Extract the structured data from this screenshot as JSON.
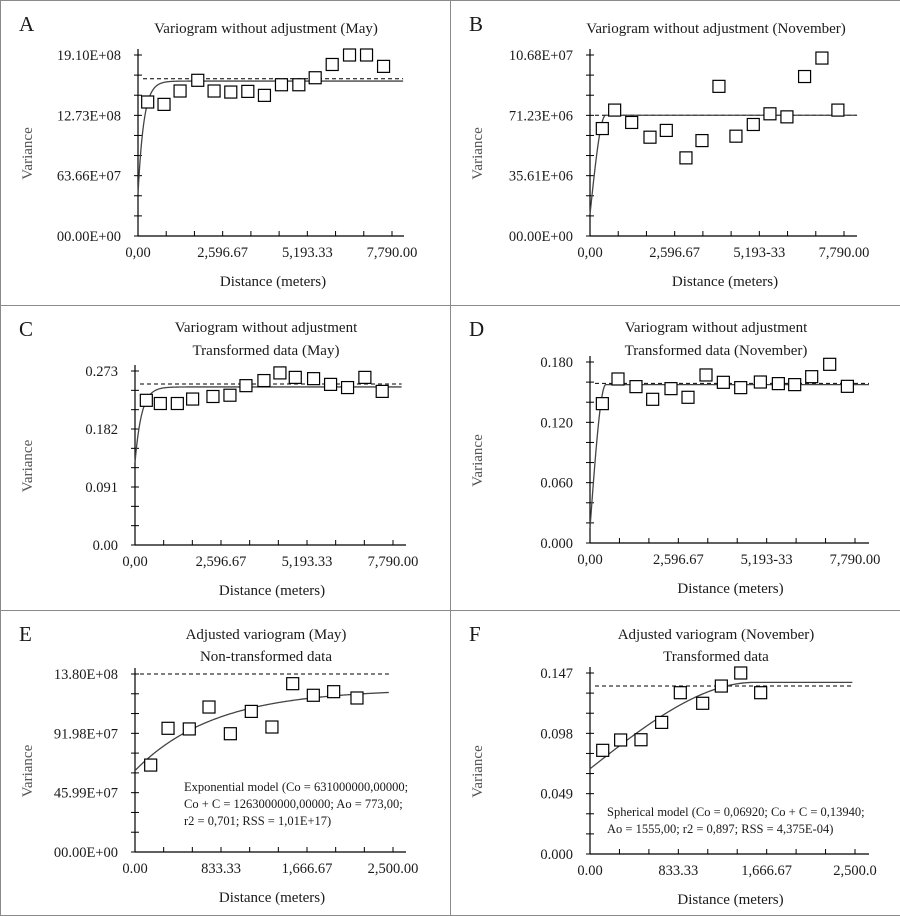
{
  "chart_data": [
    {
      "type": "scatter",
      "panel_label": "A",
      "title": [
        "Variogram without adjustment (May)"
      ],
      "xlabel": "Distance (meters)",
      "ylabel": "Variance",
      "xlim": [
        0,
        7790
      ],
      "ylim": [
        0,
        1910000000
      ],
      "x_tick_labels": [
        "0,00",
        "2,596.67",
        "5,193.33",
        "7,790.00"
      ],
      "y_tick_labels": [
        "00.00E+00",
        "63.66E+07",
        "12.73E+08",
        "19.10E+08"
      ],
      "x": [
        297,
        798,
        1290,
        1833,
        2333,
        2846,
        3368,
        3878,
        4400,
        4933,
        5434,
        5956,
        6487,
        7009,
        7531
      ],
      "y": [
        1414000000,
        1389000000,
        1530000000,
        1643000000,
        1530000000,
        1519000000,
        1526000000,
        1484000000,
        1596000000,
        1596000000,
        1670000000,
        1810000000,
        1910000000,
        1910000000,
        1790000000
      ],
      "sill_line": 1660000000,
      "model": {
        "type": "exponential",
        "nugget": 440000000,
        "sill": 1635000000,
        "range": 179,
        "x_max": 8130
      },
      "annotation": []
    },
    {
      "type": "scatter",
      "panel_label": "B",
      "title": [
        "Variogram without adjustment (November)"
      ],
      "xlabel": "Distance (meters)",
      "ylabel": "Variance",
      "xlim": [
        0,
        7790
      ],
      "ylim": [
        0,
        106800000
      ],
      "x_tick_labels": [
        "0,00",
        "2,596.67",
        "5,193-33",
        "7,790.00"
      ],
      "y_tick_labels": [
        "00.00E+00",
        "35.61E+06",
        "71.23E+06",
        "10.68E+07"
      ],
      "x": [
        378,
        756,
        1278,
        1840,
        2340,
        2943,
        3434,
        3955,
        4476,
        5008,
        5519,
        6040,
        6581,
        7113,
        7603
      ],
      "y": [
        63400000,
        74300000,
        67000000,
        58300000,
        62300000,
        46100000,
        56300000,
        88300000,
        58900000,
        65800000,
        72100000,
        70300000,
        94100000,
        105000000,
        74300000
      ],
      "sill_line": 71230000,
      "model": {
        "type": "spherical",
        "nugget": 12800000,
        "sill": 71230000,
        "range": 480,
        "x_max": 8190
      },
      "annotation": []
    },
    {
      "type": "scatter",
      "panel_label": "C",
      "title": [
        "Variogram without adjustment",
        "Transformed data (May)"
      ],
      "xlabel": "Distance (meters)",
      "ylabel": "Variance",
      "xlim": [
        0,
        7790
      ],
      "ylim": [
        0,
        0.273
      ],
      "x_tick_labels": [
        "0,00",
        "2,596.67",
        "5,193.33",
        "7,790.00"
      ],
      "y_tick_labels": [
        "0.00",
        "0.091",
        "0.182",
        "0.273"
      ],
      "x": [
        342,
        765,
        1278,
        1740,
        2354,
        2867,
        3350,
        3893,
        4376,
        4839,
        5392,
        5905,
        6418,
        6941,
        7464
      ],
      "y": [
        0.227,
        0.222,
        0.222,
        0.229,
        0.233,
        0.235,
        0.25,
        0.258,
        0.27,
        0.263,
        0.261,
        0.252,
        0.247,
        0.263,
        0.241
      ],
      "sill_line": 0.2526,
      "model": {
        "type": "exponential",
        "nugget": 0.129,
        "sill": 0.248,
        "range": 199,
        "x_max": 8050
      },
      "annotation": []
    },
    {
      "type": "scatter",
      "panel_label": "D",
      "title": [
        "Variogram without adjustment",
        "Transformed data (November)"
      ],
      "xlabel": "Distance (meters)",
      "ylabel": "Variance",
      "xlim": [
        0,
        7790
      ],
      "ylim": [
        0,
        0.18
      ],
      "x_tick_labels": [
        "0,00",
        "2,596.67",
        "5,193-33",
        "7,790.00"
      ],
      "y_tick_labels": [
        "0.000",
        "0.060",
        "0.120",
        "0.180"
      ],
      "x": [
        363,
        823,
        1352,
        1842,
        2381,
        2881,
        3410,
        3920,
        4430,
        5008,
        5537,
        6017,
        6517,
        7046,
        7566
      ],
      "y": [
        0.1386,
        0.1631,
        0.1555,
        0.1429,
        0.1535,
        0.1449,
        0.1671,
        0.1598,
        0.1545,
        0.1601,
        0.1585,
        0.1575,
        0.1654,
        0.1777,
        0.1558
      ],
      "sill_line": 0.1588,
      "model": {
        "type": "spherical",
        "nugget": 0.0149,
        "sill": 0.1575,
        "range": 465,
        "x_max": 8200
      },
      "annotation": []
    },
    {
      "type": "scatter",
      "panel_label": "E",
      "title": [
        "Adjusted variogram (May)",
        "Non-transformed data"
      ],
      "xlabel": "Distance (meters)",
      "ylabel": "Variance",
      "xlim": [
        0,
        2500
      ],
      "ylim": [
        0,
        1380000000
      ],
      "x_tick_labels": [
        "0.00",
        "833.33",
        "1,666.67",
        "2,500.00"
      ],
      "y_tick_labels": [
        "00.00E+00",
        "45.99E+07",
        "91.98E+07",
        "13.80E+08"
      ],
      "x": [
        152,
        320,
        526,
        717,
        924,
        1127,
        1327,
        1528,
        1728,
        1925,
        2151
      ],
      "y": [
        674000000,
        959000000,
        954000000,
        1124000000,
        917000000,
        1090000000,
        969000000,
        1305000000,
        1215000000,
        1243000000,
        1194000000
      ],
      "sill_line": 1380000000,
      "model": {
        "type": "exponential",
        "nugget": 631000000,
        "sill": 1263000000,
        "range": 773,
        "x_max": 2460
      },
      "annotation": [
        "Exponential model (Co = 631000000,00000;",
        "Co + C = 1263000000,00000; Ao = 773,00;",
        "r2 = 0,701; RSS = 1,01E+17)"
      ]
    },
    {
      "type": "scatter",
      "panel_label": "F",
      "title": [
        "Adjusted variogram (November)",
        "Transformed data"
      ],
      "xlabel": "Distance (meters)",
      "ylabel": "Variance",
      "xlim": [
        0,
        2500
      ],
      "ylim": [
        0,
        0.147
      ],
      "x_tick_labels": [
        "0.00",
        "833.33",
        "1,666.67",
        "2,500.0"
      ],
      "y_tick_labels": [
        "0.000",
        "0.049",
        "0.098",
        "0.147"
      ],
      "x": [
        120,
        289,
        481,
        676,
        852,
        1063,
        1239,
        1422,
        1610
      ],
      "y": [
        0.0842,
        0.0926,
        0.0928,
        0.1069,
        0.131,
        0.1224,
        0.1364,
        0.147,
        0.131
      ],
      "sill_line": 0.1364,
      "model": {
        "type": "spherical",
        "nugget": 0.0692,
        "sill": 0.1394,
        "range": 1555,
        "x_max": 2475
      },
      "annotation": [
        "Spherical model (Co = 0,06920; Co + C = 0,13940;",
        "Ao = 1555,00; r2 = 0,897; RSS = 4,375E-04)"
      ]
    }
  ],
  "colors": {
    "marker_stroke": "#000000",
    "model_curve": "#444444",
    "sill_line": "#000000",
    "axis": "#000000",
    "panel_border": "#8a8a8a"
  }
}
